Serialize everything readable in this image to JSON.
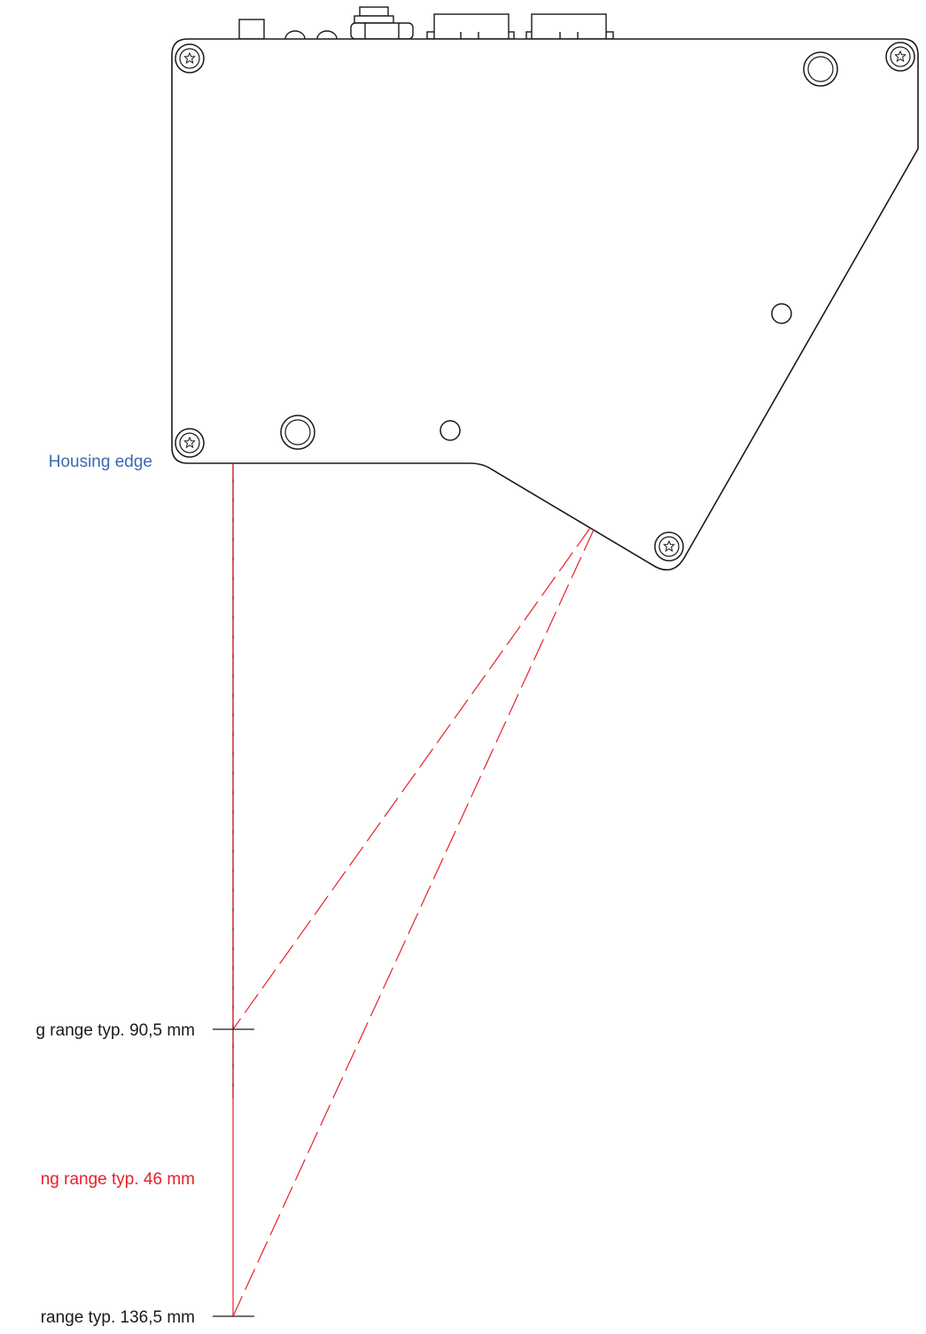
{
  "labels": {
    "housing_edge": "Housing edge",
    "range_start": "g range typ. 90,5 mm",
    "measuring_range": "ng range typ. 46 mm",
    "range_end": "range typ. 136,5 mm"
  },
  "colors": {
    "line": "#1a1a1a",
    "laser": "#e8202a",
    "housing_label": "#3a6ab0",
    "text": "#1a1a1a"
  }
}
